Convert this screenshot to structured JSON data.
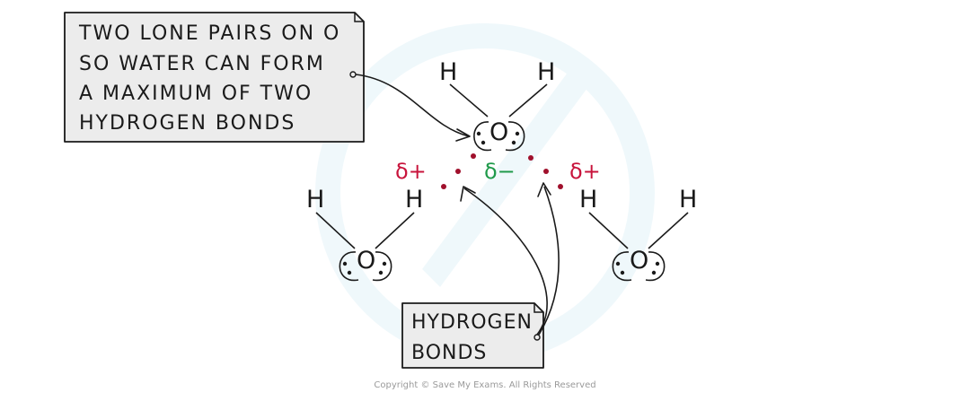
{
  "colors": {
    "ink": "#1a1a1a",
    "callout_fill": "#ececec",
    "positive": "#c8143c",
    "negative": "#1f9a4a",
    "hbond_dot": "#a0102c",
    "watermark": "#e3f3f8"
  },
  "callouts": {
    "lone_pairs": {
      "lines": [
        "TWO LONE PAIRS ON O",
        "SO WATER CAN FORM",
        "A MAXIMUM OF TWO",
        "HYDROGEN BONDS"
      ]
    },
    "hydrogen_bonds": {
      "lines": [
        "HYDROGEN",
        "BONDS"
      ]
    }
  },
  "molecules": {
    "top": {
      "oxygen": "O",
      "hydrogen_left": "H",
      "hydrogen_right": "H"
    },
    "left": {
      "oxygen": "O",
      "hydrogen_left": "H",
      "hydrogen_right": "H"
    },
    "right": {
      "oxygen": "O",
      "hydrogen_left": "H",
      "hydrogen_right": "H"
    }
  },
  "charges": {
    "delta_plus_left": "δ+",
    "delta_minus": "δ−",
    "delta_plus_right": "δ+"
  },
  "footer": {
    "copyright": "Copyright © Save My Exams. All Rights Reserved"
  }
}
